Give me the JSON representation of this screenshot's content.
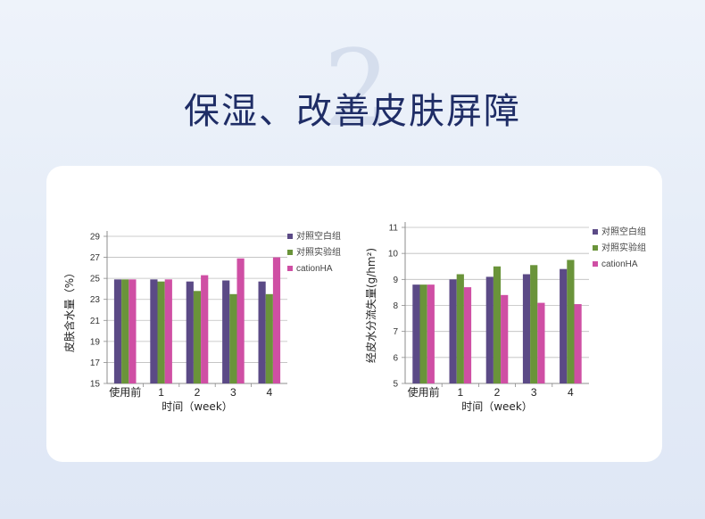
{
  "header": {
    "numeral": "2",
    "title": "保湿、改善皮肤屏障"
  },
  "chart_data": [
    {
      "type": "bar",
      "xlabel": "时间（week）",
      "ylabel": "皮肤含水量（%）",
      "ylim": [
        15,
        29
      ],
      "yticks": [
        15,
        17,
        19,
        21,
        23,
        25,
        27,
        29
      ],
      "categories": [
        "使用前",
        "1",
        "2",
        "3",
        "4"
      ],
      "legend_position": "right",
      "series": [
        {
          "name": "对照空白组",
          "color": "#5b4a86",
          "values": [
            24.9,
            24.9,
            24.7,
            24.8,
            24.7
          ]
        },
        {
          "name": "对照实验组",
          "color": "#6a943a",
          "values": [
            24.9,
            24.7,
            23.8,
            23.5,
            23.5
          ]
        },
        {
          "name": "cationHA",
          "color": "#cf4fa4",
          "values": [
            24.9,
            24.9,
            25.3,
            26.9,
            27.0
          ]
        }
      ]
    },
    {
      "type": "bar",
      "xlabel": "时间（week）",
      "ylabel": "经皮水分流失量(g/hm²)",
      "ylim": [
        5,
        11
      ],
      "yticks": [
        5,
        6,
        7,
        8,
        9,
        10,
        11
      ],
      "categories": [
        "使用前",
        "1",
        "2",
        "3",
        "4"
      ],
      "legend_position": "right",
      "series": [
        {
          "name": "对照空白组",
          "color": "#5b4a86",
          "values": [
            8.8,
            9.0,
            9.1,
            9.2,
            9.4
          ]
        },
        {
          "name": "对照实验组",
          "color": "#6a943a",
          "values": [
            8.8,
            9.2,
            9.5,
            9.55,
            9.75
          ]
        },
        {
          "name": "cationHA",
          "color": "#cf4fa4",
          "values": [
            8.8,
            8.7,
            8.4,
            8.1,
            8.05
          ]
        }
      ]
    }
  ]
}
